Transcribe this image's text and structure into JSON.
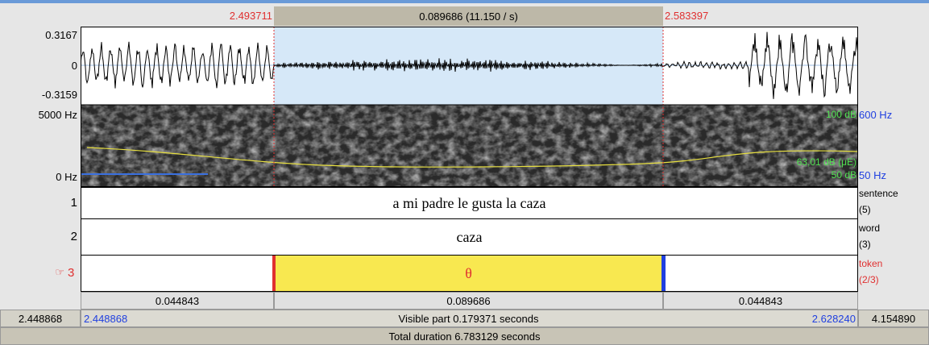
{
  "top_bar": {
    "selection_start": "2.493711",
    "selection_duration": "0.089686 (11.150 / s)",
    "selection_end": "2.583397"
  },
  "waveform": {
    "max_label": "0.3167",
    "zero_label": "0",
    "min_label": "-0.3159"
  },
  "spectrogram": {
    "top_freq": "5000 Hz",
    "bottom_freq": "0 Hz",
    "pitch_top": "600 Hz",
    "pitch_bottom": "50 Hz",
    "intensity_top": "100 dB",
    "intensity_value": "63,01 dB (μE)",
    "intensity_bottom": "50 dB"
  },
  "tiers": [
    {
      "number": "1",
      "text": "a mi padre le gusta la caza",
      "name": "sentence",
      "count": "(5)"
    },
    {
      "number": "2",
      "text": "caza",
      "name": "word",
      "count": "(3)"
    },
    {
      "pointer": "☞",
      "number": "3",
      "text": "θ",
      "name": "token",
      "count": "(2/3)"
    }
  ],
  "durations": [
    "0.044843",
    "0.089686",
    "0.044843"
  ],
  "visible_row": {
    "left_outer": "2.448868",
    "left": "2.448868",
    "center": "Visible part 0.179371 seconds",
    "right": "2.628240",
    "right_outer": "4.154890"
  },
  "total": "Total duration 6.783129 seconds"
}
